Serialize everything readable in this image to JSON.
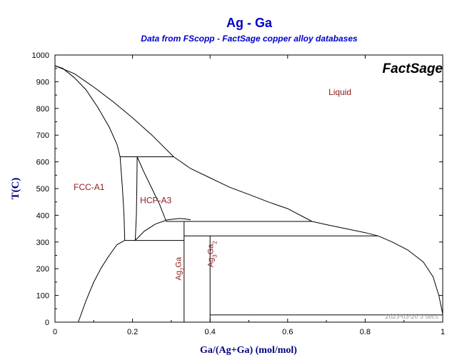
{
  "chart_data": {
    "type": "line",
    "title": "Ag - Ga",
    "subtitle": "Data from FScopp - FactSage copper alloy databases",
    "brand": "FactSage",
    "timestamp": "2023-03-20   3 secs",
    "xlabel": "Ga/(Ag+Ga) (mol/mol)",
    "ylabel": "T(C)",
    "xlim": [
      0,
      1
    ],
    "ylim": [
      0,
      1000
    ],
    "xticks": [
      "0",
      "0.2",
      "0.4",
      "0.6",
      "0.8",
      "1"
    ],
    "xtick_values": [
      0,
      0.2,
      0.4,
      0.6,
      0.8,
      1
    ],
    "yticks": [
      "0",
      "100",
      "200",
      "300",
      "400",
      "500",
      "600",
      "700",
      "800",
      "900",
      "1000"
    ],
    "ytick_values": [
      0,
      100,
      200,
      300,
      400,
      500,
      600,
      700,
      800,
      900,
      1000
    ],
    "colors": {
      "title": "#0000cc",
      "subtitle": "#0000cc",
      "phase_label": "#8b1a1a",
      "axis_label": "#000080",
      "line": "#000000",
      "timestamp": "#999999"
    },
    "phase_labels": [
      {
        "text": "Liquid",
        "x": 0.735,
        "y": 850
      },
      {
        "text": "FCC-A1",
        "x": 0.088,
        "y": 495
      },
      {
        "text": "HCP-A3",
        "x": 0.26,
        "y": 445
      },
      {
        "rich": true,
        "base": "Ag",
        "sub1": "2",
        "base2": "Ga",
        "sub2": "",
        "x": 0.325,
        "y": 200
      },
      {
        "rich": true,
        "base": "Ag",
        "sub1": "3",
        "base2": "Ga",
        "sub2": "2",
        "x": 0.408,
        "y": 255
      }
    ],
    "series": [
      {
        "points": [
          [
            0,
            960
          ],
          [
            0.02,
            950
          ],
          [
            0.05,
            915
          ],
          [
            0.08,
            870
          ],
          [
            0.11,
            805
          ],
          [
            0.14,
            730
          ],
          [
            0.16,
            665
          ],
          [
            0.168,
            619
          ]
        ]
      },
      {
        "points": [
          [
            0,
            960
          ],
          [
            0.05,
            930
          ],
          [
            0.1,
            880
          ],
          [
            0.15,
            825
          ],
          [
            0.2,
            765
          ],
          [
            0.25,
            700
          ],
          [
            0.306,
            619
          ]
        ]
      },
      {
        "points": [
          [
            0.168,
            619
          ],
          [
            0.306,
            619
          ]
        ]
      },
      {
        "points": [
          [
            0.168,
            619
          ],
          [
            0.174,
            500
          ],
          [
            0.178,
            400
          ],
          [
            0.18,
            306
          ]
        ]
      },
      {
        "points": [
          [
            0.18,
            306
          ],
          [
            0.16,
            290
          ],
          [
            0.14,
            250
          ],
          [
            0.12,
            205
          ],
          [
            0.1,
            150
          ],
          [
            0.08,
            80
          ],
          [
            0.06,
            0
          ]
        ]
      },
      {
        "points": [
          [
            0.212,
            619
          ],
          [
            0.211,
            500
          ],
          [
            0.21,
            400
          ],
          [
            0.207,
            306
          ]
        ]
      },
      {
        "points": [
          [
            0.212,
            619
          ],
          [
            0.23,
            560
          ],
          [
            0.25,
            500
          ],
          [
            0.27,
            440
          ],
          [
            0.287,
            377
          ]
        ]
      },
      {
        "points": [
          [
            0.18,
            306
          ],
          [
            0.333,
            306
          ]
        ]
      },
      {
        "points": [
          [
            0.207,
            306
          ],
          [
            0.23,
            340
          ],
          [
            0.26,
            368
          ],
          [
            0.29,
            383
          ],
          [
            0.32,
            388
          ],
          [
            0.333,
            387
          ],
          [
            0.35,
            383
          ]
        ]
      },
      {
        "points": [
          [
            0.287,
            377
          ],
          [
            0.333,
            377
          ]
        ]
      },
      {
        "points": [
          [
            0.306,
            619
          ],
          [
            0.35,
            575
          ],
          [
            0.4,
            540
          ],
          [
            0.45,
            505
          ],
          [
            0.5,
            478
          ],
          [
            0.55,
            450
          ],
          [
            0.6,
            425
          ],
          [
            0.663,
            377
          ]
        ]
      },
      {
        "points": [
          [
            0.333,
            377
          ],
          [
            0.663,
            377
          ]
        ]
      },
      {
        "points": [
          [
            0.333,
            377
          ],
          [
            0.333,
            0
          ]
        ]
      },
      {
        "points": [
          [
            0.333,
            323
          ],
          [
            0.833,
            323
          ]
        ]
      },
      {
        "points": [
          [
            0.663,
            377
          ],
          [
            0.7,
            365
          ],
          [
            0.75,
            350
          ],
          [
            0.8,
            335
          ],
          [
            0.833,
            323
          ]
        ]
      },
      {
        "points": [
          [
            0.4,
            323
          ],
          [
            0.4,
            0
          ]
        ]
      },
      {
        "points": [
          [
            0.833,
            323
          ],
          [
            0.87,
            300
          ],
          [
            0.91,
            270
          ],
          [
            0.95,
            225
          ],
          [
            0.975,
            170
          ],
          [
            0.99,
            100
          ],
          [
            1.0,
            30
          ]
        ]
      },
      {
        "points": [
          [
            0.4,
            27
          ],
          [
            1.0,
            27
          ]
        ]
      }
    ]
  }
}
